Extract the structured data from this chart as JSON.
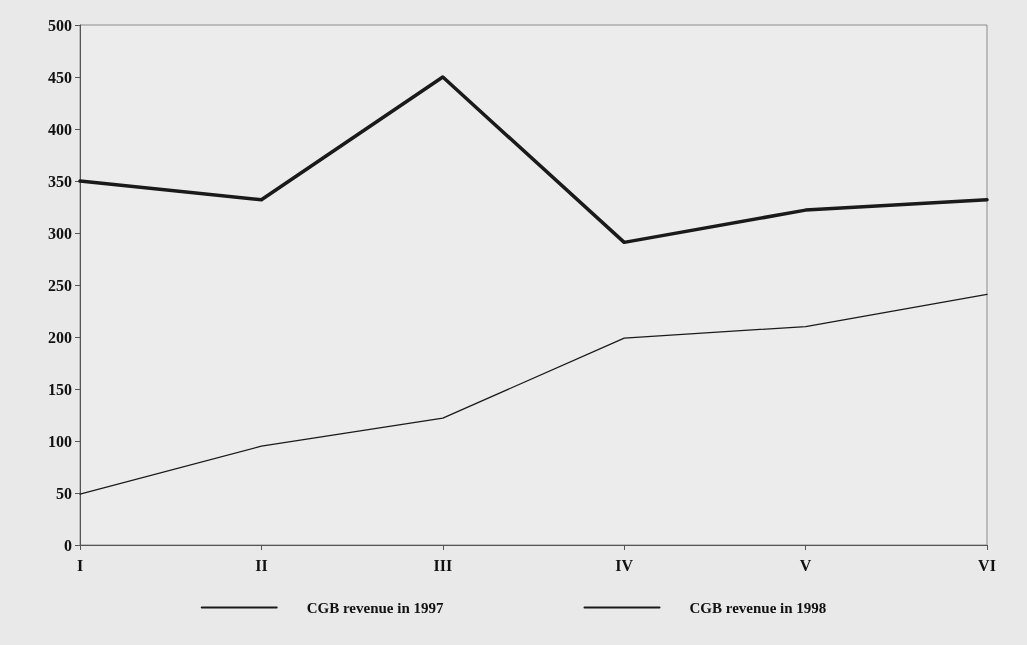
{
  "chart_data": {
    "type": "line",
    "categories": [
      "I",
      "II",
      "III",
      "IV",
      "V",
      "VI"
    ],
    "series": [
      {
        "name": "CGB revenue in 1997",
        "color": "#1a1a1a",
        "values": [
          49,
          95,
          122,
          199,
          210,
          241
        ]
      },
      {
        "name": "CGB revenue in 1998",
        "color": "#1a1a1a",
        "values": [
          350,
          332,
          450,
          291,
          322,
          332
        ]
      }
    ],
    "ylim": [
      0,
      500
    ],
    "yticks": [
      0,
      50,
      100,
      150,
      200,
      250,
      300,
      350,
      400,
      450,
      500
    ],
    "grid": false,
    "legend": "bottom",
    "marker": "none",
    "line_style": "solid"
  }
}
